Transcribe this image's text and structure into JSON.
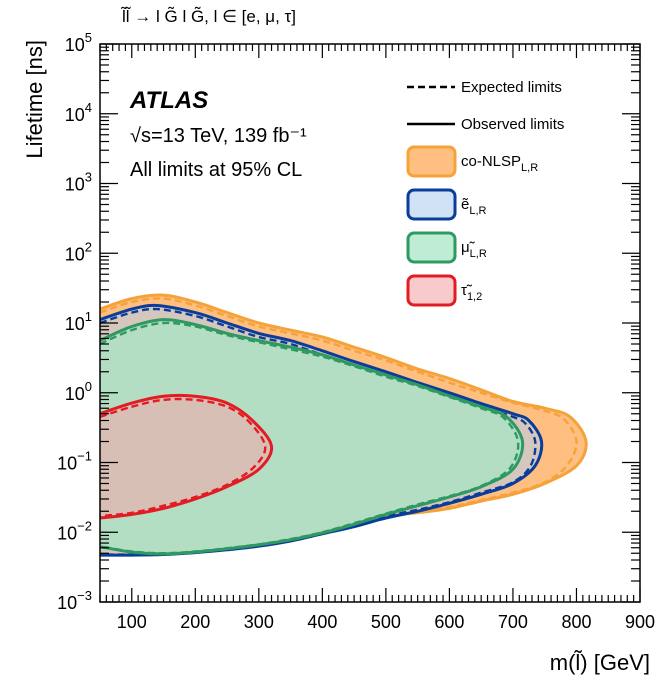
{
  "chart_data": {
    "type": "area",
    "process": "l̃l̃ → l G̃ l G̃, l ∈ [e, μ, τ]",
    "experiment": "ATLAS",
    "energy_lumi": "√s=13 TeV, 139 fb⁻¹",
    "cl_note": "All limits at 95% CL",
    "xlabel": "m(l̃) [GeV]",
    "ylabel": "Lifetime [ns]",
    "xlim": [
      50,
      900
    ],
    "ylim": [
      0.001,
      100000
    ],
    "yscale": "log",
    "x_ticks": [
      "100",
      "200",
      "300",
      "400",
      "500",
      "600",
      "700",
      "800",
      "900"
    ],
    "y_ticks": [
      {
        "value": 0.001,
        "base": "10",
        "exp": "−3"
      },
      {
        "value": 0.01,
        "base": "10",
        "exp": "−2"
      },
      {
        "value": 0.1,
        "base": "10",
        "exp": "−1"
      },
      {
        "value": 1,
        "base": "10",
        "exp": "0"
      },
      {
        "value": 10,
        "base": "10",
        "exp": "1"
      },
      {
        "value": 100,
        "base": "10",
        "exp": "2"
      },
      {
        "value": 1000,
        "base": "10",
        "exp": "3"
      },
      {
        "value": 10000,
        "base": "10",
        "exp": "4"
      },
      {
        "value": 100000,
        "base": "10",
        "exp": "5"
      }
    ],
    "legend": {
      "placement": "top-right",
      "line_entries": [
        {
          "label": "Expected limits",
          "style": "dashed"
        },
        {
          "label": "Observed limits",
          "style": "solid"
        }
      ]
    },
    "series": [
      {
        "name": "co-NLSP",
        "sub": "L,R",
        "fill": "#ffbf80",
        "fill_opacity": 1,
        "stroke": "#f5a23a",
        "observed": {
          "upper": [
            [
              50,
              15.8
            ],
            [
              100,
              22.4
            ],
            [
              150,
              25.1
            ],
            [
              200,
              20.0
            ],
            [
              250,
              14.1
            ],
            [
              300,
              10.0
            ],
            [
              350,
              7.9
            ],
            [
              400,
              6.3
            ],
            [
              450,
              4.5
            ],
            [
              500,
              3.2
            ],
            [
              550,
              2.2
            ],
            [
              600,
              1.6
            ],
            [
              650,
              1.1
            ],
            [
              700,
              0.75
            ],
            [
              750,
              0.6
            ],
            [
              790,
              0.45
            ],
            [
              815,
              0.2
            ]
          ],
          "lower": [
            [
              815,
              0.2
            ],
            [
              800,
              0.09
            ],
            [
              750,
              0.05
            ],
            [
              700,
              0.035
            ],
            [
              650,
              0.028
            ],
            [
              600,
              0.022
            ],
            [
              550,
              0.019
            ],
            [
              500,
              0.017
            ],
            [
              450,
              0.013
            ],
            [
              400,
              0.01
            ],
            [
              350,
              0.0078
            ],
            [
              300,
              0.0066
            ],
            [
              250,
              0.0058
            ],
            [
              200,
              0.0052
            ],
            [
              150,
              0.0049
            ],
            [
              100,
              0.0047
            ],
            [
              50,
              0.0047
            ]
          ]
        },
        "expected": {
          "upper": [
            [
              50,
              14.1
            ],
            [
              100,
              20.0
            ],
            [
              150,
              22.4
            ],
            [
              200,
              17.8
            ],
            [
              250,
              12.6
            ],
            [
              300,
              8.9
            ],
            [
              350,
              7.1
            ],
            [
              400,
              5.6
            ],
            [
              450,
              4.0
            ],
            [
              500,
              2.9
            ],
            [
              550,
              2.0
            ],
            [
              600,
              1.4
            ],
            [
              650,
              1.0
            ],
            [
              700,
              0.72
            ],
            [
              750,
              0.55
            ],
            [
              780,
              0.42
            ],
            [
              800,
              0.2
            ]
          ],
          "lower": [
            [
              800,
              0.2
            ],
            [
              785,
              0.09
            ],
            [
              750,
              0.052
            ],
            [
              700,
              0.037
            ],
            [
              650,
              0.029
            ],
            [
              600,
              0.023
            ],
            [
              550,
              0.0195
            ],
            [
              500,
              0.0175
            ],
            [
              450,
              0.0135
            ],
            [
              400,
              0.0105
            ],
            [
              350,
              0.008
            ],
            [
              300,
              0.0068
            ],
            [
              250,
              0.0059
            ],
            [
              200,
              0.0053
            ],
            [
              150,
              0.005
            ],
            [
              100,
              0.0048
            ],
            [
              50,
              0.0048
            ]
          ]
        }
      },
      {
        "name": "ẽ",
        "sub": "L,R",
        "fill": "#b3cdf0",
        "fill_opacity": 0.55,
        "stroke": "#0a3d99",
        "observed": {
          "upper": [
            [
              50,
              11.2
            ],
            [
              100,
              15.8
            ],
            [
              140,
              17.8
            ],
            [
              200,
              14.1
            ],
            [
              250,
              10.0
            ],
            [
              300,
              7.1
            ],
            [
              350,
              5.6
            ],
            [
              400,
              4.0
            ],
            [
              450,
              2.8
            ],
            [
              500,
              2.0
            ],
            [
              550,
              1.4
            ],
            [
              600,
              1.0
            ],
            [
              650,
              0.7
            ],
            [
              700,
              0.5
            ],
            [
              725,
              0.4
            ],
            [
              745,
              0.2
            ]
          ],
          "lower": [
            [
              745,
              0.2
            ],
            [
              735,
              0.09
            ],
            [
              700,
              0.05
            ],
            [
              650,
              0.035
            ],
            [
              600,
              0.026
            ],
            [
              550,
              0.02
            ],
            [
              500,
              0.016
            ],
            [
              450,
              0.012
            ],
            [
              400,
              0.0095
            ],
            [
              350,
              0.0075
            ],
            [
              300,
              0.0063
            ],
            [
              250,
              0.0056
            ],
            [
              200,
              0.0051
            ],
            [
              150,
              0.0048
            ],
            [
              100,
              0.0047
            ],
            [
              50,
              0.0047
            ]
          ]
        },
        "expected": {
          "upper": [
            [
              50,
              10.0
            ],
            [
              100,
              14.1
            ],
            [
              140,
              15.8
            ],
            [
              200,
              12.6
            ],
            [
              250,
              8.9
            ],
            [
              300,
              6.3
            ],
            [
              350,
              5.0
            ],
            [
              400,
              3.5
            ],
            [
              450,
              2.5
            ],
            [
              500,
              1.8
            ],
            [
              550,
              1.3
            ],
            [
              600,
              0.9
            ],
            [
              650,
              0.63
            ],
            [
              700,
              0.45
            ],
            [
              720,
              0.36
            ],
            [
              735,
              0.2
            ]
          ],
          "lower": [
            [
              735,
              0.2
            ],
            [
              728,
              0.09
            ],
            [
              700,
              0.052
            ],
            [
              650,
              0.037
            ],
            [
              600,
              0.027
            ],
            [
              550,
              0.021
            ],
            [
              500,
              0.017
            ],
            [
              450,
              0.0125
            ],
            [
              400,
              0.01
            ],
            [
              350,
              0.0078
            ],
            [
              300,
              0.0065
            ],
            [
              250,
              0.0057
            ],
            [
              200,
              0.0052
            ],
            [
              150,
              0.0049
            ],
            [
              100,
              0.0048
            ],
            [
              50,
              0.0048
            ]
          ]
        }
      },
      {
        "name": "μ̃",
        "sub": "L,R",
        "fill": "#a8e6c6",
        "fill_opacity": 0.75,
        "stroke": "#2e9960",
        "observed": {
          "upper": [
            [
              50,
              5.6
            ],
            [
              100,
              8.9
            ],
            [
              150,
              11.2
            ],
            [
              200,
              9.5
            ],
            [
              250,
              7.1
            ],
            [
              300,
              5.6
            ],
            [
              350,
              4.5
            ],
            [
              400,
              3.5
            ],
            [
              450,
              2.5
            ],
            [
              500,
              1.8
            ],
            [
              550,
              1.3
            ],
            [
              600,
              0.9
            ],
            [
              650,
              0.63
            ],
            [
              690,
              0.45
            ],
            [
              715,
              0.2
            ]
          ],
          "lower": [
            [
              715,
              0.2
            ],
            [
              700,
              0.08
            ],
            [
              650,
              0.045
            ],
            [
              600,
              0.032
            ],
            [
              550,
              0.024
            ],
            [
              500,
              0.018
            ],
            [
              450,
              0.013
            ],
            [
              400,
              0.0098
            ],
            [
              350,
              0.0078
            ],
            [
              300,
              0.0066
            ],
            [
              250,
              0.0058
            ],
            [
              200,
              0.0052
            ],
            [
              150,
              0.0049
            ],
            [
              100,
              0.0052
            ],
            [
              50,
              0.0062
            ]
          ]
        },
        "expected": {
          "upper": [
            [
              50,
              5.0
            ],
            [
              100,
              7.9
            ],
            [
              150,
              10.0
            ],
            [
              200,
              8.9
            ],
            [
              250,
              6.7
            ],
            [
              300,
              5.3
            ],
            [
              350,
              4.2
            ],
            [
              400,
              3.3
            ],
            [
              450,
              2.4
            ],
            [
              500,
              1.7
            ],
            [
              550,
              1.25
            ],
            [
              600,
              0.87
            ],
            [
              650,
              0.6
            ],
            [
              685,
              0.44
            ],
            [
              708,
              0.2
            ]
          ],
          "lower": [
            [
              708,
              0.2
            ],
            [
              695,
              0.082
            ],
            [
              650,
              0.046
            ],
            [
              600,
              0.033
            ],
            [
              550,
              0.025
            ],
            [
              500,
              0.0185
            ],
            [
              450,
              0.0135
            ],
            [
              400,
              0.01
            ],
            [
              350,
              0.008
            ],
            [
              300,
              0.0067
            ],
            [
              250,
              0.0059
            ],
            [
              200,
              0.0053
            ],
            [
              150,
              0.005
            ],
            [
              100,
              0.0053
            ],
            [
              50,
              0.0063
            ]
          ]
        }
      },
      {
        "name": "τ̃",
        "sub": "1,2",
        "fill": "#f5a6aa",
        "fill_opacity": 0.55,
        "stroke": "#e31b23",
        "observed": {
          "upper": [
            [
              50,
              0.5
            ],
            [
              100,
              0.71
            ],
            [
              150,
              0.89
            ],
            [
              200,
              0.89
            ],
            [
              250,
              0.71
            ],
            [
              290,
              0.4
            ],
            [
              320,
              0.17
            ]
          ],
          "lower": [
            [
              320,
              0.17
            ],
            [
              300,
              0.08
            ],
            [
              250,
              0.045
            ],
            [
              200,
              0.03
            ],
            [
              150,
              0.022
            ],
            [
              100,
              0.018
            ],
            [
              50,
              0.016
            ]
          ]
        },
        "expected": {
          "upper": [
            [
              50,
              0.45
            ],
            [
              100,
              0.63
            ],
            [
              150,
              0.79
            ],
            [
              200,
              0.79
            ],
            [
              250,
              0.63
            ],
            [
              285,
              0.38
            ],
            [
              310,
              0.17
            ]
          ],
          "lower": [
            [
              310,
              0.17
            ],
            [
              292,
              0.085
            ],
            [
              250,
              0.048
            ],
            [
              200,
              0.032
            ],
            [
              150,
              0.024
            ],
            [
              100,
              0.019
            ],
            [
              50,
              0.017
            ]
          ]
        }
      }
    ]
  }
}
